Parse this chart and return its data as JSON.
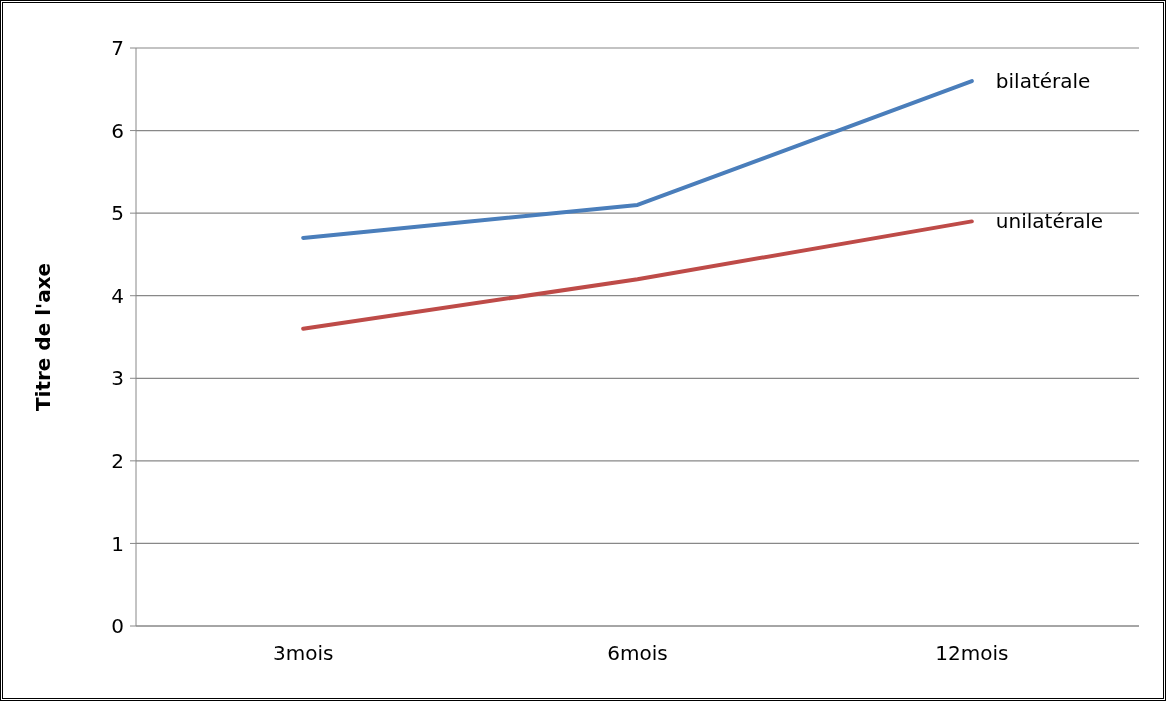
{
  "chart_data": {
    "type": "line",
    "ylabel": "Titre de l'axe",
    "categories": [
      "3mois",
      "6mois",
      "12mois"
    ],
    "series": [
      {
        "name": "bilatérale",
        "color": "#4a7ebb",
        "values": [
          4.7,
          5.1,
          6.6
        ]
      },
      {
        "name": "unilatérale",
        "color": "#be4b48",
        "values": [
          3.6,
          4.2,
          4.9
        ]
      }
    ],
    "ylim": [
      0,
      7
    ],
    "yticks": [
      0,
      1,
      2,
      3,
      4,
      5,
      6,
      7
    ],
    "grid": "y",
    "marker": "none"
  }
}
